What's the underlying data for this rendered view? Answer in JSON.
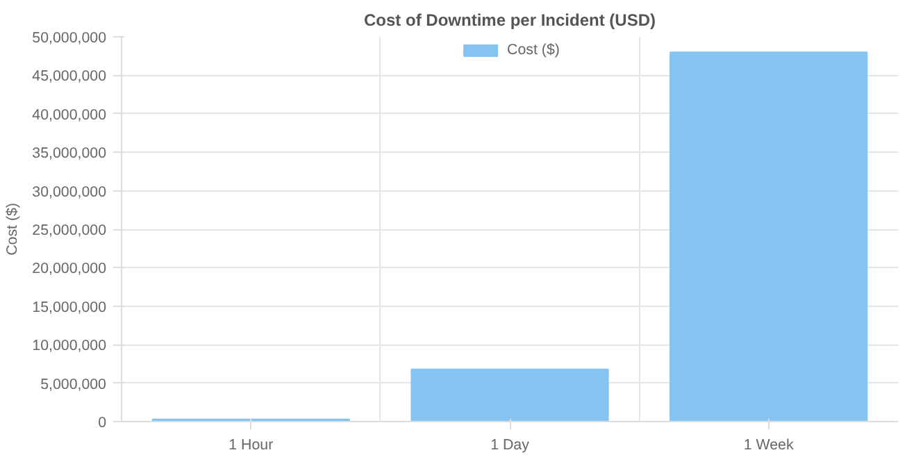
{
  "chart_data": {
    "type": "bar",
    "title": "Cost of Downtime per Incident (USD)",
    "ylabel": "Cost ($)",
    "categories": [
      "1 Hour",
      "1 Day",
      "1 Week"
    ],
    "series": [
      {
        "name": "Cost ($)",
        "color": "#85c4f0",
        "values": [
          300000,
          6800000,
          48000000
        ]
      }
    ],
    "ylim": [
      0,
      50000000
    ],
    "yticks": [
      {
        "value": 0,
        "label": "0"
      },
      {
        "value": 5000000,
        "label": "5,000,000"
      },
      {
        "value": 10000000,
        "label": "10,000,000"
      },
      {
        "value": 15000000,
        "label": "15,000,000"
      },
      {
        "value": 20000000,
        "label": "20,000,000"
      },
      {
        "value": 25000000,
        "label": "25,000,000"
      },
      {
        "value": 30000000,
        "label": "30,000,000"
      },
      {
        "value": 35000000,
        "label": "35,000,000"
      },
      {
        "value": 40000000,
        "label": "40,000,000"
      },
      {
        "value": 45000000,
        "label": "45,000,000"
      },
      {
        "value": 50000000,
        "label": "50,000,000"
      }
    ],
    "grid": true,
    "legend": "top"
  }
}
